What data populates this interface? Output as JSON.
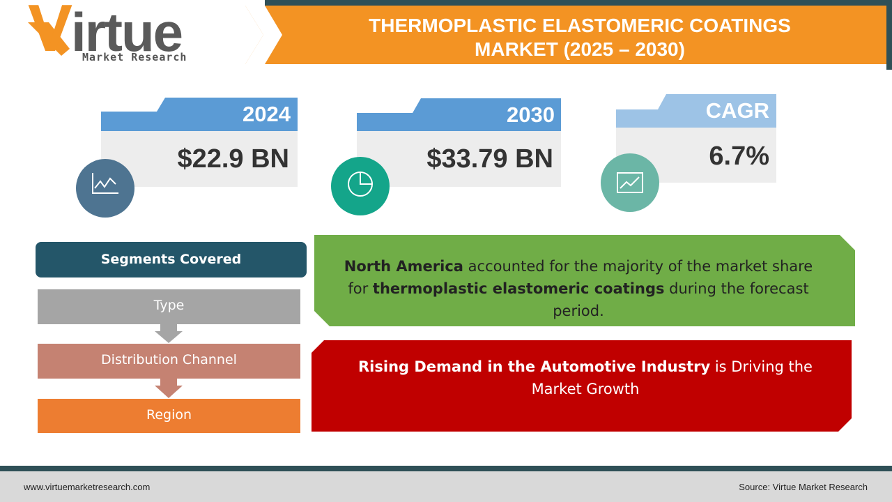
{
  "logo": {
    "name": "Virtue",
    "tagline": "Market Research"
  },
  "header": {
    "title_lines": [
      "THERMOPLASTIC ELASTOMERIC COATINGS",
      "MARKET (2025 – 2030)"
    ]
  },
  "stats": [
    {
      "label": "2024",
      "value": "$22.9 BN"
    },
    {
      "label": "2030",
      "value": "$33.79 BN"
    },
    {
      "label": "CAGR",
      "value": "6.7%"
    }
  ],
  "segments": {
    "title": "Segments Covered",
    "items": [
      "Type",
      "Distribution Channel",
      "Region"
    ]
  },
  "highlights": [
    {
      "parts": [
        "North America",
        " accounted for the majority of the market share for ",
        "thermoplastic elastomeric coatings",
        " during the forecast period."
      ]
    },
    {
      "parts": [
        "Rising Demand in the Automotive Industry",
        " is Driving the Market Growth"
      ]
    }
  ],
  "footer": {
    "website": "www.virtuemarketresearch.com",
    "source": "Source: Virtue Market Research"
  }
}
